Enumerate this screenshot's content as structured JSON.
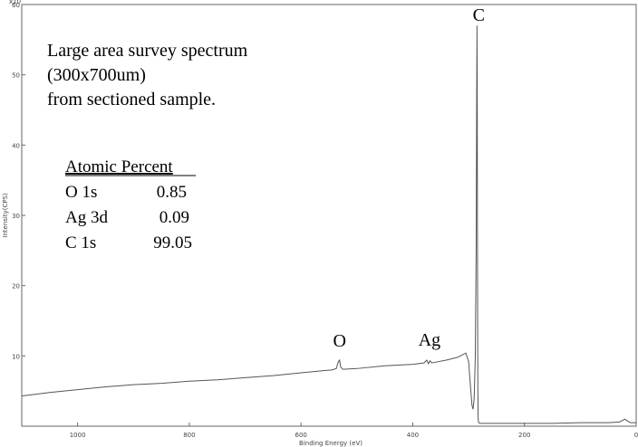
{
  "chart_data": {
    "type": "line",
    "xlabel": "Binding Energy (eV)",
    "ylabel": "Intensity(CPS)",
    "xlim": [
      1100,
      0
    ],
    "ylim": [
      0,
      60
    ],
    "y_scale_label": "x10",
    "x_ticks": [
      1000,
      800,
      600,
      400,
      200,
      0
    ],
    "y_ticks": [
      10,
      20,
      30,
      40,
      50,
      60
    ],
    "grid": false,
    "annotation": [
      "Large area survey spectrum",
      "(300x700um)",
      "from sectioned sample."
    ],
    "table": {
      "header": "Atomic Percent",
      "rows": [
        {
          "element": "O 1s",
          "value": "0.85"
        },
        {
          "element": "Ag 3d",
          "value": "0.09"
        },
        {
          "element": "C 1s",
          "value": "99.05"
        }
      ]
    },
    "peak_labels": [
      {
        "label": "O",
        "x": 531
      },
      {
        "label": "Ag",
        "x": 370
      },
      {
        "label": "C",
        "x": 285
      }
    ],
    "series": [
      {
        "color": "#555555",
        "x": [
          1100,
          1050,
          1000,
          950,
          900,
          850,
          800,
          750,
          700,
          650,
          600,
          560,
          545,
          537,
          533,
          531,
          529,
          525,
          500,
          450,
          400,
          380,
          375,
          372,
          369,
          366,
          360,
          340,
          320,
          310,
          305,
          300,
          297,
          294,
          292,
          290,
          288,
          286.5,
          285.5,
          285,
          284.5,
          284,
          283.5,
          283,
          282,
          280,
          275,
          250,
          200,
          150,
          100,
          50,
          30,
          20,
          15,
          10,
          0
        ],
        "y": [
          4.3,
          4.8,
          5.2,
          5.6,
          5.9,
          6.1,
          6.4,
          6.6,
          6.9,
          7.2,
          7.6,
          7.9,
          8.0,
          8.2,
          9.2,
          9.4,
          8.4,
          8.1,
          8.2,
          8.6,
          8.8,
          9.0,
          9.4,
          8.9,
          9.3,
          9.0,
          9.1,
          9.4,
          9.8,
          10.2,
          10.4,
          9.2,
          6.0,
          3.0,
          2.4,
          4.0,
          10.0,
          25.0,
          47.0,
          57.0,
          45.0,
          20.0,
          6.0,
          1.2,
          0.5,
          0.4,
          0.4,
          0.4,
          0.4,
          0.4,
          0.5,
          0.5,
          0.6,
          1.0,
          0.7,
          0.5,
          0.5
        ]
      }
    ]
  }
}
